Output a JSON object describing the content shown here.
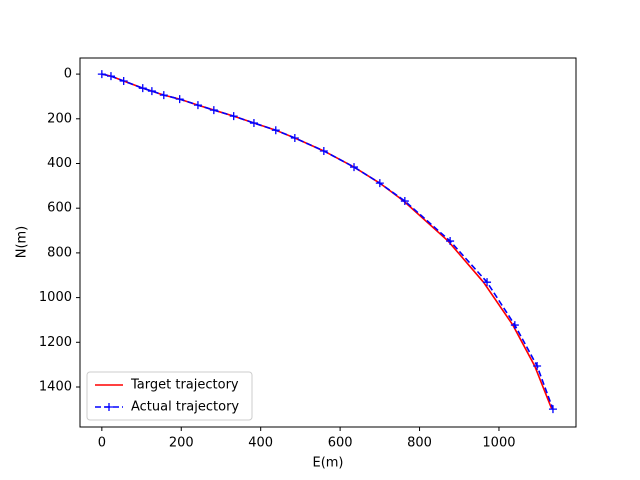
{
  "chart_data": {
    "type": "line",
    "xlabel": "E(m)",
    "ylabel": "N(m)",
    "xlim": [
      -55,
      1194
    ],
    "ylim": [
      1579,
      -72
    ],
    "xticks": [
      0,
      200,
      400,
      600,
      800,
      1000
    ],
    "yticks": [
      0,
      200,
      400,
      600,
      800,
      1000,
      1200,
      1400
    ],
    "grid": false,
    "legend": "lower left",
    "series": [
      {
        "name": "Target trajectory",
        "color": "#ff0000",
        "style": "solid",
        "marker": "none",
        "x": [
          0,
          23,
          55,
          103,
          126,
          156,
          196,
          242,
          282,
          332,
          383,
          438,
          486,
          559,
          635,
          700,
          760,
          872,
          961,
          1035,
          1090,
          1133
        ],
        "values": [
          0,
          9,
          31,
          63,
          76,
          94,
          112,
          139,
          161,
          188,
          219,
          251,
          286,
          344,
          416,
          488,
          568,
          747,
          931,
          1123,
          1306,
          1499
        ]
      },
      {
        "name": "Actual trajectory",
        "color": "#0000ff",
        "style": "dashed",
        "marker": "+",
        "x": [
          0,
          23,
          55,
          103,
          126,
          156,
          196,
          242,
          282,
          332,
          383,
          438,
          486,
          559,
          635,
          700,
          763,
          877,
          970,
          1040,
          1096,
          1136
        ],
        "values": [
          0,
          9,
          31,
          63,
          76,
          94,
          112,
          139,
          161,
          188,
          219,
          251,
          286,
          344,
          416,
          488,
          568,
          747,
          931,
          1123,
          1306,
          1499
        ]
      }
    ]
  }
}
